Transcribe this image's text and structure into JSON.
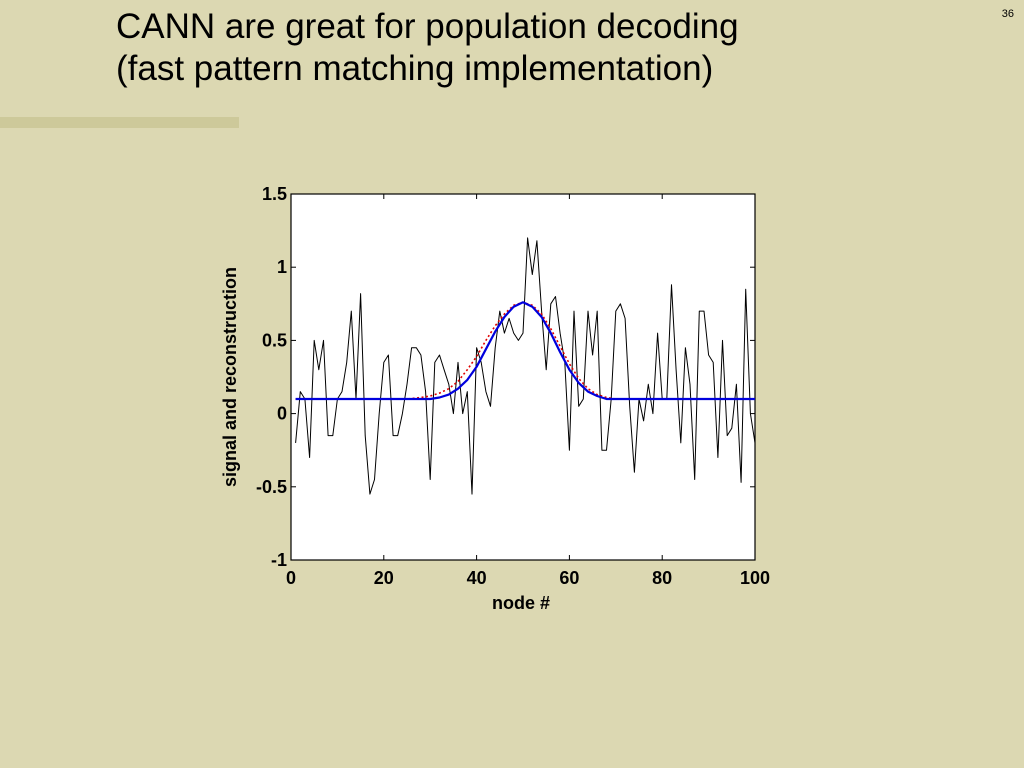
{
  "slide": {
    "title_line1": "CANN are great for population decoding",
    "title_line2": "(fast pattern matching implementation)",
    "page_number": "36",
    "accent_color": "#cdc99a",
    "background": "#dcd8b2"
  },
  "chart_data": {
    "type": "line",
    "xlabel": "node #",
    "ylabel": "signal and reconstruction",
    "xlim": [
      0,
      100
    ],
    "ylim": [
      -1,
      1.5
    ],
    "x_ticks": [
      0,
      20,
      40,
      60,
      80,
      100
    ],
    "y_ticks": [
      -1,
      -0.5,
      0,
      0.5,
      1,
      1.5
    ],
    "x_tick_labels": [
      "0",
      "20",
      "40",
      "60",
      "80",
      "100"
    ],
    "y_tick_labels": [
      "-1",
      "-0.5",
      "0",
      "0.5",
      "1",
      "1.5"
    ],
    "grid": false,
    "legend": "none",
    "series": [
      {
        "style": "solid-thin",
        "color": "#000000",
        "x": [
          1,
          2,
          3,
          4,
          5,
          6,
          7,
          8,
          9,
          10,
          11,
          12,
          13,
          14,
          15,
          16,
          17,
          18,
          19,
          20,
          21,
          22,
          23,
          24,
          25,
          26,
          27,
          28,
          29,
          30,
          31,
          32,
          33,
          34,
          35,
          36,
          37,
          38,
          39,
          40,
          41,
          42,
          43,
          44,
          45,
          46,
          47,
          48,
          49,
          50,
          51,
          52,
          53,
          54,
          55,
          56,
          57,
          58,
          59,
          60,
          61,
          62,
          63,
          64,
          65,
          66,
          67,
          68,
          69,
          70,
          71,
          72,
          73,
          74,
          75,
          76,
          77,
          78,
          79,
          80,
          81,
          82,
          83,
          84,
          85,
          86,
          87,
          88,
          89,
          90,
          91,
          92,
          93,
          94,
          95,
          96,
          97,
          98,
          99,
          100
        ],
        "values": [
          -0.2,
          0.15,
          0.1,
          -0.3,
          0.5,
          0.3,
          0.5,
          -0.15,
          -0.15,
          0.1,
          0.15,
          0.35,
          0.7,
          0.1,
          0.82,
          -0.15,
          -0.55,
          -0.45,
          0.0,
          0.35,
          0.4,
          -0.15,
          -0.15,
          0.0,
          0.2,
          0.45,
          0.45,
          0.4,
          0.15,
          -0.45,
          0.35,
          0.4,
          0.3,
          0.2,
          0.0,
          0.35,
          0.0,
          0.15,
          -0.55,
          0.45,
          0.35,
          0.15,
          0.05,
          0.45,
          0.7,
          0.55,
          0.65,
          0.55,
          0.5,
          0.55,
          1.2,
          0.95,
          1.18,
          0.7,
          0.3,
          0.75,
          0.8,
          0.55,
          0.35,
          -0.25,
          0.7,
          0.05,
          0.1,
          0.7,
          0.4,
          0.7,
          -0.25,
          -0.25,
          0.1,
          0.7,
          0.75,
          0.65,
          0.05,
          -0.4,
          0.1,
          -0.05,
          0.2,
          0.0,
          0.55,
          0.1,
          0.1,
          0.88,
          0.3,
          -0.2,
          0.45,
          0.2,
          -0.45,
          0.7,
          0.7,
          0.4,
          0.35,
          -0.3,
          0.5,
          -0.15,
          -0.1,
          0.2,
          -0.47,
          0.85,
          0.0,
          -0.2
        ]
      },
      {
        "style": "dotted",
        "color": "#e00000",
        "x": [
          1,
          5,
          10,
          15,
          20,
          25,
          28,
          30,
          32,
          34,
          36,
          38,
          40,
          42,
          44,
          46,
          48,
          50,
          52,
          54,
          56,
          58,
          60,
          62,
          64,
          66,
          68,
          70,
          72,
          75,
          80,
          85,
          90,
          95,
          100
        ],
        "values": [
          0.1,
          0.1,
          0.1,
          0.1,
          0.1,
          0.1,
          0.11,
          0.12,
          0.14,
          0.17,
          0.22,
          0.3,
          0.39,
          0.5,
          0.6,
          0.68,
          0.74,
          0.76,
          0.74,
          0.68,
          0.58,
          0.46,
          0.34,
          0.24,
          0.17,
          0.13,
          0.11,
          0.1,
          0.1,
          0.1,
          0.1,
          0.1,
          0.1,
          0.1,
          0.1
        ]
      },
      {
        "style": "solid",
        "color": "#0000dd",
        "x": [
          1,
          5,
          10,
          15,
          20,
          25,
          28,
          30,
          32,
          34,
          36,
          38,
          40,
          42,
          44,
          46,
          48,
          50,
          52,
          54,
          56,
          58,
          60,
          62,
          64,
          66,
          68,
          70,
          72,
          75,
          80,
          85,
          90,
          95,
          100
        ],
        "values": [
          0.1,
          0.1,
          0.1,
          0.1,
          0.1,
          0.1,
          0.1,
          0.1,
          0.11,
          0.13,
          0.17,
          0.23,
          0.32,
          0.44,
          0.56,
          0.66,
          0.73,
          0.76,
          0.73,
          0.66,
          0.55,
          0.42,
          0.3,
          0.21,
          0.15,
          0.12,
          0.1,
          0.1,
          0.1,
          0.1,
          0.1,
          0.1,
          0.1,
          0.1,
          0.1
        ]
      }
    ]
  }
}
